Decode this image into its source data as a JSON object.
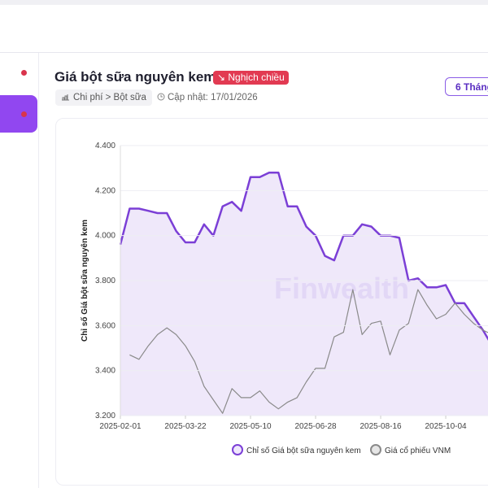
{
  "header": {
    "title": "Giá bột sữa nguyên kem",
    "badge": "↘ Nghịch chiều",
    "breadcrumb": "Chi phí > Bột sữa",
    "updated": "Cập nhật: 17/01/2026",
    "period_button": "6 Tháng"
  },
  "chart_data": {
    "type": "line",
    "ylabel": "Chỉ số Giá bột sữa nguyên kem",
    "watermark": "Finwealth",
    "x": [
      "2025-02-01",
      "2025-02-08",
      "2025-02-15",
      "2025-02-22",
      "2025-03-01",
      "2025-03-08",
      "2025-03-15",
      "2025-03-22",
      "2025-03-29",
      "2025-04-05",
      "2025-04-12",
      "2025-04-19",
      "2025-04-26",
      "2025-05-03",
      "2025-05-10",
      "2025-05-17",
      "2025-05-24",
      "2025-05-31",
      "2025-06-07",
      "2025-06-14",
      "2025-06-21",
      "2025-06-28",
      "2025-07-05",
      "2025-07-12",
      "2025-07-19",
      "2025-07-26",
      "2025-08-02",
      "2025-08-09",
      "2025-08-16",
      "2025-08-23",
      "2025-08-30",
      "2025-09-06",
      "2025-09-13",
      "2025-09-20",
      "2025-09-27",
      "2025-10-04",
      "2025-10-11",
      "2025-10-18",
      "2025-10-25",
      "2025-11-01",
      "2025-11-08"
    ],
    "series": [
      {
        "name": "Chỉ số Giá bột sữa nguyên kem",
        "color": "#7b3fd6",
        "area": true,
        "values": [
          3.96,
          4.12,
          4.12,
          4.11,
          4.1,
          4.1,
          4.02,
          3.97,
          3.97,
          4.05,
          4.0,
          4.13,
          4.15,
          4.11,
          4.26,
          4.26,
          4.28,
          4.28,
          4.13,
          4.13,
          4.04,
          4.0,
          3.91,
          3.89,
          4.0,
          4.0,
          4.05,
          4.04,
          4.0,
          4.0,
          3.99,
          3.8,
          3.81,
          3.77,
          3.77,
          3.78,
          3.7,
          3.7,
          3.64,
          3.58,
          3.51
        ]
      },
      {
        "name": "Giá cổ phiếu VNM",
        "color": "#8a8a8a",
        "area": false,
        "values": [
          null,
          3.47,
          3.45,
          3.51,
          3.56,
          3.59,
          3.56,
          3.51,
          3.44,
          3.33,
          3.27,
          3.21,
          3.32,
          3.28,
          3.28,
          3.31,
          3.26,
          3.23,
          3.26,
          3.28,
          3.35,
          3.41,
          3.41,
          3.55,
          3.57,
          3.76,
          3.56,
          3.61,
          3.62,
          3.47,
          3.58,
          3.61,
          3.76,
          3.69,
          3.63,
          3.65,
          3.7,
          3.65,
          3.61,
          3.58,
          3.56
        ]
      }
    ],
    "ylim": [
      3.2,
      4.4
    ],
    "yticks": [
      {
        "value": 3.2,
        "label": "3.200"
      },
      {
        "value": 3.4,
        "label": "3.400"
      },
      {
        "value": 3.6,
        "label": "3.600"
      },
      {
        "value": 3.8,
        "label": "3.800"
      },
      {
        "value": 4.0,
        "label": "4.000"
      },
      {
        "value": 4.2,
        "label": "4.200"
      },
      {
        "value": 4.4,
        "label": "4.400"
      }
    ],
    "xticks": [
      "2025-02-01",
      "2025-03-22",
      "2025-05-10",
      "2025-06-28",
      "2025-08-16",
      "2025-10-04"
    ],
    "grid": true
  }
}
